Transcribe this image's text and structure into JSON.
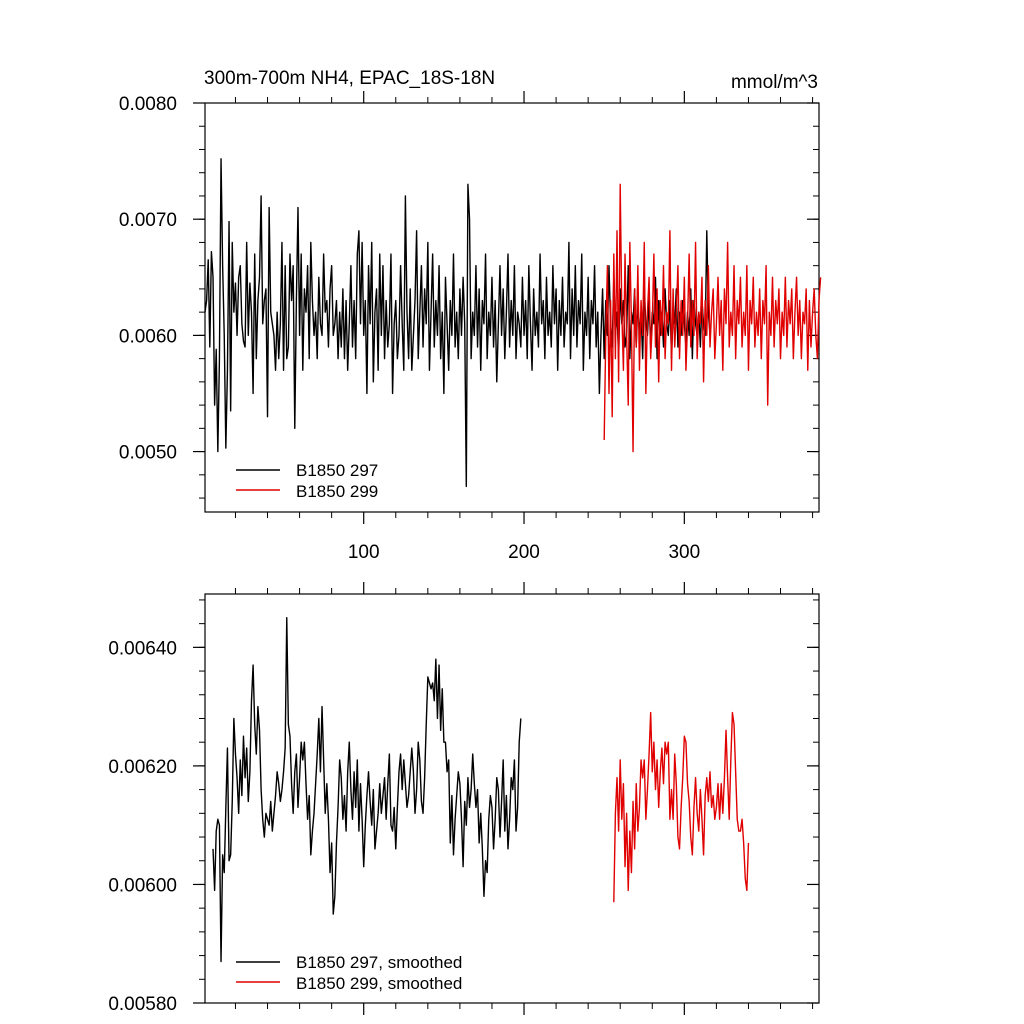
{
  "chart_data": [
    {
      "type": "line",
      "title": "300m-700m NH4, EPAC_18S-18N",
      "units": "mmol/m^3",
      "xlim": [
        1,
        384
      ],
      "ylim": [
        0.00448,
        0.008
      ],
      "x_ticks": [
        100,
        200,
        300
      ],
      "x_tick_labels": [
        "100",
        "200",
        "300"
      ],
      "y_ticks": [
        0.005,
        0.006,
        0.007,
        0.008
      ],
      "y_tick_labels": [
        "0.0050",
        "0.0060",
        "0.0070",
        "0.0080"
      ],
      "legend_position": "bottom-left",
      "series": [
        {
          "name": "B1850 297",
          "color": "#000000",
          "x_start": 1,
          "values": [
            0.0062,
            0.0063,
            0.00665,
            0.0059,
            0.00672,
            0.0065,
            0.0054,
            0.00588,
            0.005,
            0.0058,
            0.00752,
            0.0066,
            0.006,
            0.00503,
            0.0057,
            0.00698,
            0.00535,
            0.0068,
            0.0062,
            0.00645,
            0.006,
            0.0065,
            0.0066,
            0.0061,
            0.00595,
            0.0059,
            0.0068,
            0.006,
            0.00645,
            0.0062,
            0.0055,
            0.0067,
            0.0058,
            0.0063,
            0.0065,
            0.0072,
            0.0061,
            0.0063,
            0.0064,
            0.0053,
            0.0071,
            0.0062,
            0.0061,
            0.006,
            0.0057,
            0.0062,
            0.0058,
            0.0061,
            0.0068,
            0.0057,
            0.0066,
            0.0058,
            0.0059,
            0.0067,
            0.0063,
            0.0066,
            0.0052,
            0.0063,
            0.0071,
            0.006,
            0.0067,
            0.0057,
            0.0064,
            0.0062,
            0.0066,
            0.0058,
            0.0068,
            0.0063,
            0.006,
            0.0062,
            0.0058,
            0.0065,
            0.0061,
            0.006,
            0.0067,
            0.0062,
            0.0063,
            0.0059,
            0.0064,
            0.0066,
            0.006,
            0.0061,
            0.0063,
            0.0058,
            0.0062,
            0.0059,
            0.0064,
            0.0058,
            0.0063,
            0.0057,
            0.0061,
            0.0066,
            0.0059,
            0.0063,
            0.0058,
            0.0067,
            0.0069,
            0.0061,
            0.0068,
            0.006,
            0.0063,
            0.0055,
            0.0066,
            0.0061,
            0.0068,
            0.0056,
            0.0062,
            0.0064,
            0.0057,
            0.0067,
            0.006,
            0.0066,
            0.0058,
            0.0063,
            0.0059,
            0.0061,
            0.0067,
            0.0055,
            0.0061,
            0.0063,
            0.0058,
            0.006,
            0.0066,
            0.0061,
            0.0057,
            0.0072,
            0.0062,
            0.0058,
            0.0064,
            0.0057,
            0.006,
            0.0063,
            0.0069,
            0.0058,
            0.0062,
            0.0066,
            0.0059,
            0.0064,
            0.0061,
            0.0068,
            0.0057,
            0.0062,
            0.0067,
            0.0059,
            0.0063,
            0.006,
            0.0066,
            0.0058,
            0.0062,
            0.0055,
            0.0065,
            0.0061,
            0.0057,
            0.0063,
            0.006,
            0.0067,
            0.0059,
            0.0062,
            0.0058,
            0.0064,
            0.006,
            0.0065,
            0.0061,
            0.0047,
            0.0073,
            0.007,
            0.0058,
            0.0062,
            0.006,
            0.0066,
            0.0059,
            0.0064,
            0.0057,
            0.0063,
            0.0061,
            0.0067,
            0.0058,
            0.0062,
            0.006,
            0.0065,
            0.0059,
            0.0063,
            0.0056,
            0.0061,
            0.0066,
            0.006,
            0.0064,
            0.0058,
            0.0062,
            0.0067,
            0.0059,
            0.0063,
            0.006,
            0.0066,
            0.0058,
            0.0062,
            0.0061,
            0.0059,
            0.0065,
            0.006,
            0.0063,
            0.0058,
            0.0066,
            0.0061,
            0.0057,
            0.0064,
            0.006,
            0.0062,
            0.0059,
            0.0067,
            0.0061,
            0.0063,
            0.0058,
            0.0065,
            0.006,
            0.0062,
            0.0059,
            0.0066,
            0.0061,
            0.0064,
            0.0057,
            0.0063,
            0.006,
            0.0065,
            0.0059,
            0.0062,
            0.0061,
            0.0068,
            0.0058,
            0.0064,
            0.006,
            0.0066,
            0.0059,
            0.0063,
            0.0061,
            0.0067,
            0.0057,
            0.0062,
            0.006,
            0.0065,
            0.0058,
            0.0063,
            0.0061,
            0.0066,
            0.0059,
            0.0062,
            0.0055,
            0.006,
            0.0064,
            0.0058,
            0.0063,
            0.006,
            0.0066,
            0.0061,
            0.0059,
            0.0065,
            0.006,
            0.0062,
            0.0058,
            0.0064,
            0.0061,
            0.0063,
            0.0059,
            0.006,
            0.0066,
            0.0058,
            0.0062,
            0.0061,
            0.0064,
            0.0059,
            0.0063,
            0.006,
            0.0062,
            0.0058,
            0.0064,
            0.0061,
            0.006,
            0.0063,
            0.0059,
            0.0062,
            0.0061,
            0.0065,
            0.0058,
            0.0063,
            0.006,
            0.0062,
            0.0059,
            0.0064,
            0.0061,
            0.006,
            0.0063,
            0.0058,
            0.0062,
            0.0061,
            0.0064,
            0.0059,
            0.0062,
            0.006,
            0.0063,
            0.0061,
            0.0059,
            0.0062,
            0.006,
            0.0064,
            0.0058,
            0.0063,
            0.0061,
            0.006,
            0.0062,
            0.0059,
            0.0063,
            0.0061,
            0.006,
            0.0069,
            0.0062,
            0.006
          ]
        },
        {
          "name": "B1850 299",
          "color": "#e00000",
          "x_start": 250,
          "values": [
            0.0051,
            0.006,
            0.0066,
            0.0055,
            0.0063,
            0.0053,
            0.0067,
            0.0058,
            0.0069,
            0.0056,
            0.0073,
            0.0062,
            0.0057,
            0.0067,
            0.006,
            0.0054,
            0.0068,
            0.0061,
            0.005,
            0.0064,
            0.0059,
            0.0066,
            0.0057,
            0.0063,
            0.006,
            0.0068,
            0.0055,
            0.0062,
            0.0065,
            0.0058,
            0.0061,
            0.0067,
            0.0059,
            0.0064,
            0.0056,
            0.0063,
            0.006,
            0.0066,
            0.0058,
            0.0062,
            0.0061,
            0.0069,
            0.0057,
            0.0064,
            0.0059,
            0.0062,
            0.0066,
            0.0058,
            0.0063,
            0.006,
            0.0065,
            0.0057,
            0.0061,
            0.0067,
            0.0059,
            0.0063,
            0.006,
            0.0068,
            0.0058,
            0.0062,
            0.0061,
            0.0065,
            0.0056,
            0.0063,
            0.006,
            0.0066,
            0.0059,
            0.0062,
            0.0064,
            0.0058,
            0.0061,
            0.0065,
            0.006,
            0.0063,
            0.0057,
            0.0064,
            0.0061,
            0.0068,
            0.0059,
            0.0062,
            0.006,
            0.0066,
            0.0058,
            0.0063,
            0.0061,
            0.0065,
            0.0059,
            0.0062,
            0.006,
            0.0066,
            0.0057,
            0.0063,
            0.0061,
            0.0065,
            0.0059,
            0.0062,
            0.006,
            0.0064,
            0.0058,
            0.0063,
            0.0061,
            0.0066,
            0.0054,
            0.0062,
            0.006,
            0.0065,
            0.0059,
            0.0063,
            0.0061,
            0.0064,
            0.0058,
            0.0062,
            0.006,
            0.0065,
            0.0059,
            0.0063,
            0.0061,
            0.0064,
            0.0058,
            0.0062,
            0.0065,
            0.006,
            0.0063,
            0.0058,
            0.0062,
            0.0061,
            0.0064,
            0.0057,
            0.0063,
            0.0059,
            0.0062,
            0.0064,
            0.006,
            0.0058,
            0.0063,
            0.0065
          ]
        }
      ]
    },
    {
      "type": "line",
      "xlim": [
        1,
        384
      ],
      "ylim": [
        0.0058,
        0.00649
      ],
      "x_ticks": [
        100,
        200,
        300
      ],
      "y_ticks": [
        0.0058,
        0.006,
        0.0062,
        0.0064
      ],
      "y_tick_labels": [
        "0.00580",
        "0.00600",
        "0.00620",
        "0.00640"
      ],
      "legend_position": "bottom-left",
      "series": [
        {
          "name": "B1850 297, smoothed",
          "color": "#000000",
          "x_start": 6,
          "values": [
            0.00606,
            0.00599,
            0.00609,
            0.00611,
            0.0061,
            0.00587,
            0.00605,
            0.00602,
            0.00613,
            0.00623,
            0.00604,
            0.00605,
            0.00614,
            0.00628,
            0.00622,
            0.00618,
            0.00612,
            0.00621,
            0.00615,
            0.00625,
            0.00618,
            0.00623,
            0.00614,
            0.00619,
            0.00631,
            0.00637,
            0.00627,
            0.00622,
            0.0063,
            0.00626,
            0.00616,
            0.00611,
            0.00608,
            0.00612,
            0.00611,
            0.0061,
            0.00614,
            0.00609,
            0.00612,
            0.00615,
            0.00619,
            0.00617,
            0.00614,
            0.00616,
            0.00619,
            0.00623,
            0.00645,
            0.00627,
            0.00625,
            0.00617,
            0.00612,
            0.00619,
            0.00622,
            0.00613,
            0.00618,
            0.00624,
            0.00621,
            0.00624,
            0.00617,
            0.00611,
            0.00615,
            0.00605,
            0.00609,
            0.00612,
            0.00617,
            0.00622,
            0.00628,
            0.00619,
            0.0063,
            0.00621,
            0.00612,
            0.00617,
            0.00611,
            0.00602,
            0.00607,
            0.00595,
            0.00598,
            0.00607,
            0.00613,
            0.00621,
            0.00618,
            0.00611,
            0.00615,
            0.00609,
            0.00619,
            0.00624,
            0.00616,
            0.00611,
            0.00619,
            0.00613,
            0.00621,
            0.00609,
            0.00617,
            0.00611,
            0.00603,
            0.0061,
            0.00615,
            0.00619,
            0.00614,
            0.0061,
            0.00616,
            0.00606,
            0.00609,
            0.00612,
            0.00617,
            0.00612,
            0.00615,
            0.00618,
            0.00611,
            0.00617,
            0.00622,
            0.0061,
            0.00609,
            0.00613,
            0.00606,
            0.00613,
            0.00619,
            0.00622,
            0.00616,
            0.00621,
            0.00617,
            0.00613,
            0.00615,
            0.00619,
            0.00623,
            0.00619,
            0.00612,
            0.00616,
            0.00624,
            0.00621,
            0.00614,
            0.00612,
            0.00618,
            0.00627,
            0.00635,
            0.00634,
            0.00633,
            0.00634,
            0.00631,
            0.00638,
            0.00628,
            0.00637,
            0.00626,
            0.00633,
            0.00624,
            0.00624,
            0.00619,
            0.00621,
            0.00607,
            0.00615,
            0.00605,
            0.00611,
            0.00615,
            0.00619,
            0.00617,
            0.00611,
            0.00603,
            0.00614,
            0.0061,
            0.00618,
            0.00613,
            0.00616,
            0.00622,
            0.00617,
            0.00613,
            0.00616,
            0.00607,
            0.00612,
            0.00606,
            0.00598,
            0.00604,
            0.00602,
            0.00611,
            0.00615,
            0.00613,
            0.00606,
            0.00611,
            0.00618,
            0.00616,
            0.00608,
            0.00614,
            0.00621,
            0.00609,
            0.00615,
            0.00606,
            0.00611,
            0.00618,
            0.00616,
            0.00621,
            0.00609,
            0.00613,
            0.00624,
            0.00628
          ]
        },
        {
          "name": "B1850 299, smoothed",
          "color": "#e00000",
          "x_start": 256,
          "values": [
            0.00597,
            0.00612,
            0.00618,
            0.00609,
            0.00621,
            0.00611,
            0.00617,
            0.00603,
            0.00612,
            0.00599,
            0.00609,
            0.00602,
            0.00614,
            0.00606,
            0.00617,
            0.00609,
            0.00613,
            0.00621,
            0.00618,
            0.00621,
            0.00611,
            0.00616,
            0.00622,
            0.00629,
            0.00619,
            0.00624,
            0.00616,
            0.00621,
            0.00613,
            0.00619,
            0.00623,
            0.00617,
            0.00624,
            0.00622,
            0.00624,
            0.00611,
            0.00616,
            0.00611,
            0.00622,
            0.00617,
            0.00608,
            0.00606,
            0.00613,
            0.00618,
            0.00625,
            0.00624,
            0.00617,
            0.00614,
            0.00608,
            0.00605,
            0.00613,
            0.00618,
            0.00612,
            0.00609,
            0.00616,
            0.00611,
            0.00605,
            0.00615,
            0.00618,
            0.00614,
            0.00619,
            0.00613,
            0.00615,
            0.00611,
            0.00613,
            0.00617,
            0.00611,
            0.00617,
            0.00612,
            0.00618,
            0.00626,
            0.00618,
            0.00611,
            0.00621,
            0.00629,
            0.00627,
            0.00619,
            0.00611,
            0.00609,
            0.00609,
            0.00611,
            0.00607,
            0.00601,
            0.00599,
            0.00607
          ]
        }
      ]
    }
  ]
}
